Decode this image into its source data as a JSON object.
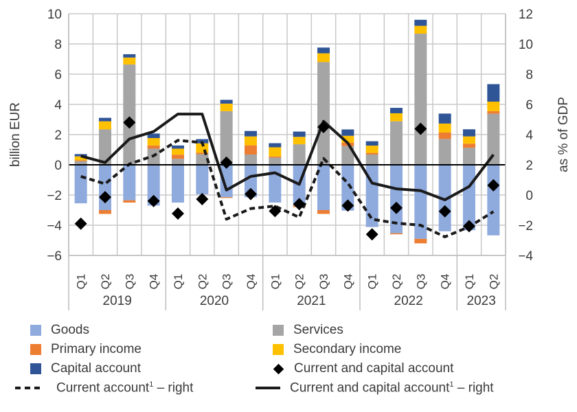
{
  "chart_data": {
    "type": "bar",
    "subtype": "stacked bar with lines and markers",
    "title": "",
    "ylabel": "billion  EUR",
    "ylabel_right": "as % of GDP",
    "ylim": [
      -6,
      10
    ],
    "ylim_right": [
      -4,
      12
    ],
    "yticks": [
      "10",
      "8",
      "6",
      "4",
      "2",
      "0",
      "−2",
      "−4",
      "−6"
    ],
    "yticks_right": [
      "12",
      "10",
      "8",
      "6",
      "4",
      "2",
      "0",
      "−2",
      "−4"
    ],
    "yticks_values": [
      10,
      8,
      6,
      4,
      2,
      0,
      -2,
      -4,
      -6
    ],
    "yticks_right_values": [
      12,
      10,
      8,
      6,
      4,
      2,
      0,
      -2,
      -4
    ],
    "grid": true,
    "categories": [
      "Q1",
      "Q2",
      "Q3",
      "Q4",
      "Q1",
      "Q2",
      "Q3",
      "Q4",
      "Q1",
      "Q2",
      "Q3",
      "Q4",
      "Q1",
      "Q2",
      "Q3",
      "Q4",
      "Q1",
      "Q2"
    ],
    "groups": [
      {
        "label": "2019",
        "count": 4
      },
      {
        "label": "2020",
        "count": 4
      },
      {
        "label": "2021",
        "count": 4
      },
      {
        "label": "2022",
        "count": 4
      },
      {
        "label": "2023",
        "count": 2
      }
    ],
    "series": [
      {
        "name": "Goods",
        "kind": "bar",
        "axis": "left",
        "color": "#8FAADC",
        "values": [
          -2.55,
          -3.0,
          -2.35,
          -2.7,
          -2.5,
          -1.95,
          -2.15,
          -2.15,
          -2.5,
          -2.7,
          -3.0,
          -3.03,
          -4.12,
          -4.53,
          -4.9,
          -4.4,
          -4.33,
          -4.67
        ]
      },
      {
        "name": "Services",
        "kind": "bar",
        "axis": "left",
        "color": "#A5A5A5",
        "values": [
          0.24,
          2.34,
          6.64,
          1.07,
          0.4,
          0.7,
          3.55,
          0.68,
          0.48,
          1.36,
          6.8,
          1.24,
          0.68,
          2.88,
          8.68,
          1.71,
          1.13,
          3.38
        ]
      },
      {
        "name": "Primary income",
        "kind": "bar",
        "axis": "left",
        "color": "#ED7D31",
        "values": [
          0.06,
          -0.25,
          -0.15,
          0.21,
          0.27,
          0.1,
          -0.05,
          0.61,
          0.07,
          -0.1,
          -0.25,
          0.23,
          0.11,
          -0.07,
          -0.3,
          0.43,
          0.27,
          0.17
        ]
      },
      {
        "name": "Secondary income",
        "kind": "bar",
        "axis": "left",
        "color": "#FFC000",
        "values": [
          0.26,
          0.54,
          0.46,
          0.49,
          0.4,
          0.62,
          0.5,
          0.59,
          0.61,
          0.49,
          0.58,
          0.45,
          0.48,
          0.53,
          0.52,
          0.59,
          0.48,
          0.63
        ]
      },
      {
        "name": "Capital account",
        "kind": "bar",
        "axis": "left",
        "color": "#2F5597",
        "values": [
          0.15,
          0.23,
          0.22,
          0.3,
          0.21,
          0.28,
          0.25,
          0.36,
          0.27,
          0.35,
          0.38,
          0.42,
          0.29,
          0.36,
          0.4,
          0.66,
          0.47,
          1.16
        ]
      },
      {
        "name": "Current and capital account",
        "kind": "marker",
        "axis": "right",
        "color": "#000000",
        "values": [
          -1.9,
          -0.14,
          4.8,
          -0.4,
          -1.23,
          -0.27,
          2.14,
          0.06,
          -1.06,
          -0.6,
          4.5,
          -0.7,
          -2.6,
          -0.85,
          4.38,
          -1.08,
          -2.06,
          0.64
        ]
      },
      {
        "name": "Current account¹ – right",
        "kind": "line",
        "style": "dashed",
        "axis": "right",
        "color": "#1a1a1a",
        "values": [
          1.23,
          0.74,
          2.05,
          2.6,
          3.62,
          3.47,
          -1.6,
          -0.9,
          -0.73,
          -1.48,
          2.42,
          0.79,
          -1.6,
          -1.86,
          -2.0,
          -2.77,
          -2.1,
          -1.1
        ]
      },
      {
        "name": "Current and capital account¹ – right",
        "kind": "line",
        "style": "solid",
        "axis": "right",
        "color": "#1a1a1a",
        "values": [
          2.58,
          2.15,
          3.71,
          4.2,
          5.36,
          5.36,
          0.33,
          1.23,
          1.47,
          0.71,
          4.88,
          3.44,
          0.79,
          0.41,
          0.29,
          -0.32,
          0.56,
          2.67
        ]
      }
    ],
    "legend_position": "bottom"
  },
  "legend": {
    "items": [
      {
        "label": "Goods",
        "marker": "square",
        "color": "#8FAADC"
      },
      {
        "label": "Services",
        "marker": "square",
        "color": "#A5A5A5"
      },
      {
        "label": "Primary income",
        "marker": "square",
        "color": "#ED7D31"
      },
      {
        "label": "Secondary income",
        "marker": "square",
        "color": "#FFC000"
      },
      {
        "label": "Capital account",
        "marker": "square",
        "color": "#2F5597"
      },
      {
        "label": "Current and capital account",
        "marker": "diamond",
        "color": "#000000"
      },
      {
        "label_main": "Current account",
        "label_sup": "1",
        "label_suffix": " – right",
        "marker": "dashed-line",
        "color": "#1a1a1a"
      },
      {
        "label_main": "Current and capital account",
        "label_sup": "1",
        "label_suffix": " – right",
        "marker": "solid-line",
        "color": "#1a1a1a"
      }
    ]
  }
}
